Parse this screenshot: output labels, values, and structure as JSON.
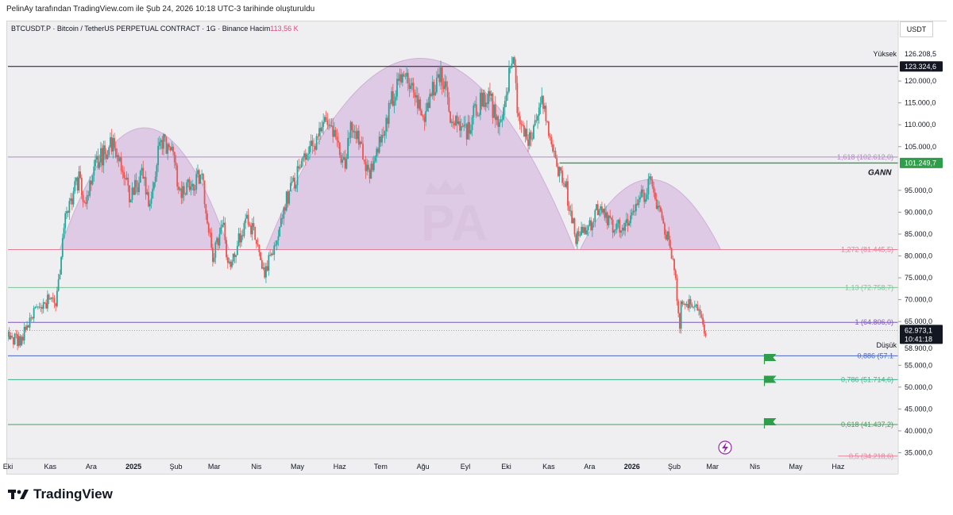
{
  "header": {
    "credit": "PelinAy tarafından TradingView.com ile Şub 24, 2026 10:18 UTC-3 tarihinde oluşturuldu",
    "symbol_text": "BTCUSDT.P · Bitcoin / TetherUS PERPETUAL CONTRACT · 1G · Binance",
    "volume_label": "Hacim",
    "volume_value": "113,56 K",
    "currency": "USDT"
  },
  "footer": {
    "brand": "TradingView"
  },
  "colors": {
    "up": "#26a69a",
    "down": "#ef5350",
    "arch_fill": "#dcc4e2",
    "arch_stroke": "#c9a6d3",
    "fib_1618": "#b388c8",
    "fib_1272": "#e57f98",
    "fib_113": "#7fc49a",
    "fib_1": "#7e57c2",
    "fib_0886": "#4a66c9",
    "fib_0786": "#3fb28a",
    "fib_0618": "#4e9a62",
    "gann_line": "#2e9e4a",
    "high_line": "#131722",
    "last_price_bg": "#131722",
    "gann_label_bg": "#2e9e4a"
  },
  "chart_data": {
    "type": "candlestick",
    "title": "BTCUSDT.P · Bitcoin / TetherUS PERPETUAL CONTRACT · 1G · Binance",
    "x_start": "2024-10-01",
    "x_end": "2026-07-15",
    "ylim": [
      34000,
      130000
    ],
    "x_ticks": [
      {
        "label": "Eki",
        "date": "2024-10-01",
        "bold": false
      },
      {
        "label": "Kas",
        "date": "2024-11-01",
        "bold": false
      },
      {
        "label": "Ara",
        "date": "2024-12-01",
        "bold": false
      },
      {
        "label": "2025",
        "date": "2025-01-01",
        "bold": true
      },
      {
        "label": "Şub",
        "date": "2025-02-01",
        "bold": false
      },
      {
        "label": "Mar",
        "date": "2025-03-01",
        "bold": false
      },
      {
        "label": "Nis",
        "date": "2025-04-01",
        "bold": false
      },
      {
        "label": "May",
        "date": "2025-05-01",
        "bold": false
      },
      {
        "label": "Haz",
        "date": "2025-06-01",
        "bold": false
      },
      {
        "label": "Tem",
        "date": "2025-07-01",
        "bold": false
      },
      {
        "label": "Ağu",
        "date": "2025-08-01",
        "bold": false
      },
      {
        "label": "Eyl",
        "date": "2025-09-01",
        "bold": false
      },
      {
        "label": "Eki",
        "date": "2025-10-01",
        "bold": false
      },
      {
        "label": "Kas",
        "date": "2025-11-01",
        "bold": false
      },
      {
        "label": "Ara",
        "date": "2025-12-01",
        "bold": false
      },
      {
        "label": "2026",
        "date": "2026-01-01",
        "bold": true
      },
      {
        "label": "Şub",
        "date": "2026-02-01",
        "bold": false
      },
      {
        "label": "Mar",
        "date": "2026-03-01",
        "bold": false
      },
      {
        "label": "Nis",
        "date": "2026-04-01",
        "bold": false
      },
      {
        "label": "May",
        "date": "2026-05-01",
        "bold": false
      },
      {
        "label": "Haz",
        "date": "2026-06-01",
        "bold": false
      }
    ],
    "y_ticks": [
      {
        "value": 120000,
        "label": "120.000,0"
      },
      {
        "value": 115000,
        "label": "115.000,0"
      },
      {
        "value": 110000,
        "label": "110.000,0"
      },
      {
        "value": 105000,
        "label": "105.000,0"
      },
      {
        "value": 95000,
        "label": "95.000,0"
      },
      {
        "value": 90000,
        "label": "90.000,0"
      },
      {
        "value": 85000,
        "label": "85.000,0"
      },
      {
        "value": 80000,
        "label": "80.000,0"
      },
      {
        "value": 75000,
        "label": "75.000,0"
      },
      {
        "value": 70000,
        "label": "70.000,0"
      },
      {
        "value": 65000,
        "label": "65.000,0"
      },
      {
        "value": 55000,
        "label": "55.000,0"
      },
      {
        "value": 50000,
        "label": "50.000,0"
      },
      {
        "value": 45000,
        "label": "45.000,0"
      },
      {
        "value": 40000,
        "label": "40.000,0"
      },
      {
        "value": 35000,
        "label": "35.000,0"
      }
    ],
    "path_points": [
      [
        "2024-10-01",
        61500
      ],
      [
        "2024-10-10",
        60500
      ],
      [
        "2024-10-21",
        67500
      ],
      [
        "2024-10-31",
        70000
      ],
      [
        "2024-11-05",
        68500
      ],
      [
        "2024-11-12",
        88000
      ],
      [
        "2024-11-22",
        98000
      ],
      [
        "2024-11-27",
        92000
      ],
      [
        "2024-12-05",
        101000
      ],
      [
        "2024-12-17",
        106500
      ],
      [
        "2024-12-30",
        93000
      ],
      [
        "2025-01-07",
        99000
      ],
      [
        "2025-01-13",
        91000
      ],
      [
        "2025-01-21",
        107000
      ],
      [
        "2025-01-31",
        103000
      ],
      [
        "2025-02-03",
        95000
      ],
      [
        "2025-02-20",
        98000
      ],
      [
        "2025-02-28",
        80000
      ],
      [
        "2025-03-08",
        88000
      ],
      [
        "2025-03-11",
        77000
      ],
      [
        "2025-03-25",
        88000
      ],
      [
        "2025-04-01",
        84000
      ],
      [
        "2025-04-07",
        76000
      ],
      [
        "2025-04-15",
        84000
      ],
      [
        "2025-04-25",
        95000
      ],
      [
        "2025-05-10",
        104000
      ],
      [
        "2025-05-22",
        111000
      ],
      [
        "2025-06-05",
        101000
      ],
      [
        "2025-06-10",
        110000
      ],
      [
        "2025-06-22",
        99000
      ],
      [
        "2025-07-03",
        109000
      ],
      [
        "2025-07-14",
        121000
      ],
      [
        "2025-07-24",
        118000
      ],
      [
        "2025-08-02",
        113000
      ],
      [
        "2025-08-14",
        123000
      ],
      [
        "2025-08-20",
        113000
      ],
      [
        "2025-09-01",
        108000
      ],
      [
        "2025-09-10",
        114000
      ],
      [
        "2025-09-18",
        117000
      ],
      [
        "2025-09-25",
        109000
      ],
      [
        "2025-10-01",
        118000
      ],
      [
        "2025-10-06",
        125000
      ],
      [
        "2025-10-10",
        112000
      ],
      [
        "2025-10-17",
        105000
      ],
      [
        "2025-10-27",
        115000
      ],
      [
        "2025-11-04",
        103000
      ],
      [
        "2025-11-14",
        95000
      ],
      [
        "2025-11-21",
        84000
      ],
      [
        "2025-12-01",
        87000
      ],
      [
        "2025-12-09",
        92000
      ],
      [
        "2025-12-18",
        86000
      ],
      [
        "2025-12-31",
        88000
      ],
      [
        "2026-01-06",
        92000
      ],
      [
        "2026-01-14",
        96500
      ],
      [
        "2026-01-22",
        89000
      ],
      [
        "2026-01-31",
        80000
      ],
      [
        "2026-02-05",
        64000
      ],
      [
        "2026-02-06",
        70000
      ],
      [
        "2026-02-15",
        69000
      ],
      [
        "2026-02-24",
        63000
      ]
    ],
    "arches": [
      {
        "start": "2024-11-08",
        "end": "2025-03-12",
        "base": 81446,
        "peak": 109300
      },
      {
        "start": "2025-04-08",
        "end": "2025-11-20",
        "base": 81446,
        "peak": 125200
      },
      {
        "start": "2025-11-24",
        "end": "2026-03-07",
        "base": 81446,
        "peak": 97500
      }
    ],
    "horizontal_levels": [
      {
        "name": "high",
        "value": 123324.6,
        "color_key": "high_line",
        "start": "2024-10-01"
      },
      {
        "name": "fib_1618",
        "value": 102612,
        "color_key": "fib_1618",
        "start": "2024-10-01",
        "label": "1,618 (102.612,0)"
      },
      {
        "name": "fib_1272",
        "value": 81445.5,
        "color_key": "fib_1272",
        "start": "2024-10-01",
        "label": "1,272 (81.445,5)"
      },
      {
        "name": "fib_113",
        "value": 72758.7,
        "color_key": "fib_113",
        "start": "2024-10-01",
        "label": "1,13 (72.758,7)"
      },
      {
        "name": "fib_1",
        "value": 64806,
        "color_key": "fib_1",
        "start": "2024-10-01",
        "label": "1 (64.806,0)"
      },
      {
        "name": "fib_0886",
        "value": 57165,
        "color_key": "fib_0886",
        "start": "2024-10-01",
        "label": "0,886 (57.1"
      },
      {
        "name": "fib_0786",
        "value": 51714.6,
        "color_key": "fib_0786",
        "start": "2024-10-01",
        "label": "0,786 (51.714,6)"
      },
      {
        "name": "fib_0618",
        "value": 41437.2,
        "color_key": "fib_0618",
        "start": "2024-10-01",
        "label": "0,618 (41.437,2)"
      },
      {
        "name": "fib_05",
        "value": 34218.6,
        "color_key": "fib_1272",
        "start": "2026-06-01",
        "label": "0,5 (34.218,6)"
      },
      {
        "name": "gann",
        "value": 101249.7,
        "color_key": "gann_line",
        "start": "2025-11-09"
      }
    ],
    "last_price": {
      "value": 62973.1,
      "label": "62.973,1",
      "countdown": "10:41:18"
    },
    "high": {
      "value": 126208.5,
      "label": "126.208,5",
      "tag": "Yüksek",
      "line_label": "123.324,6"
    },
    "low": {
      "value": 58900,
      "label": "58.900,0",
      "tag": "Düşük"
    },
    "gann": {
      "value": 101249.7,
      "label": "101.249,7",
      "tag": "GANN"
    },
    "flags": [
      {
        "date": "2026-04-08",
        "value": 57600
      },
      {
        "date": "2026-04-08",
        "value": 52600
      },
      {
        "date": "2026-04-08",
        "value": 42900
      }
    ],
    "watermark": "PA",
    "grid": false,
    "legend": "none"
  }
}
